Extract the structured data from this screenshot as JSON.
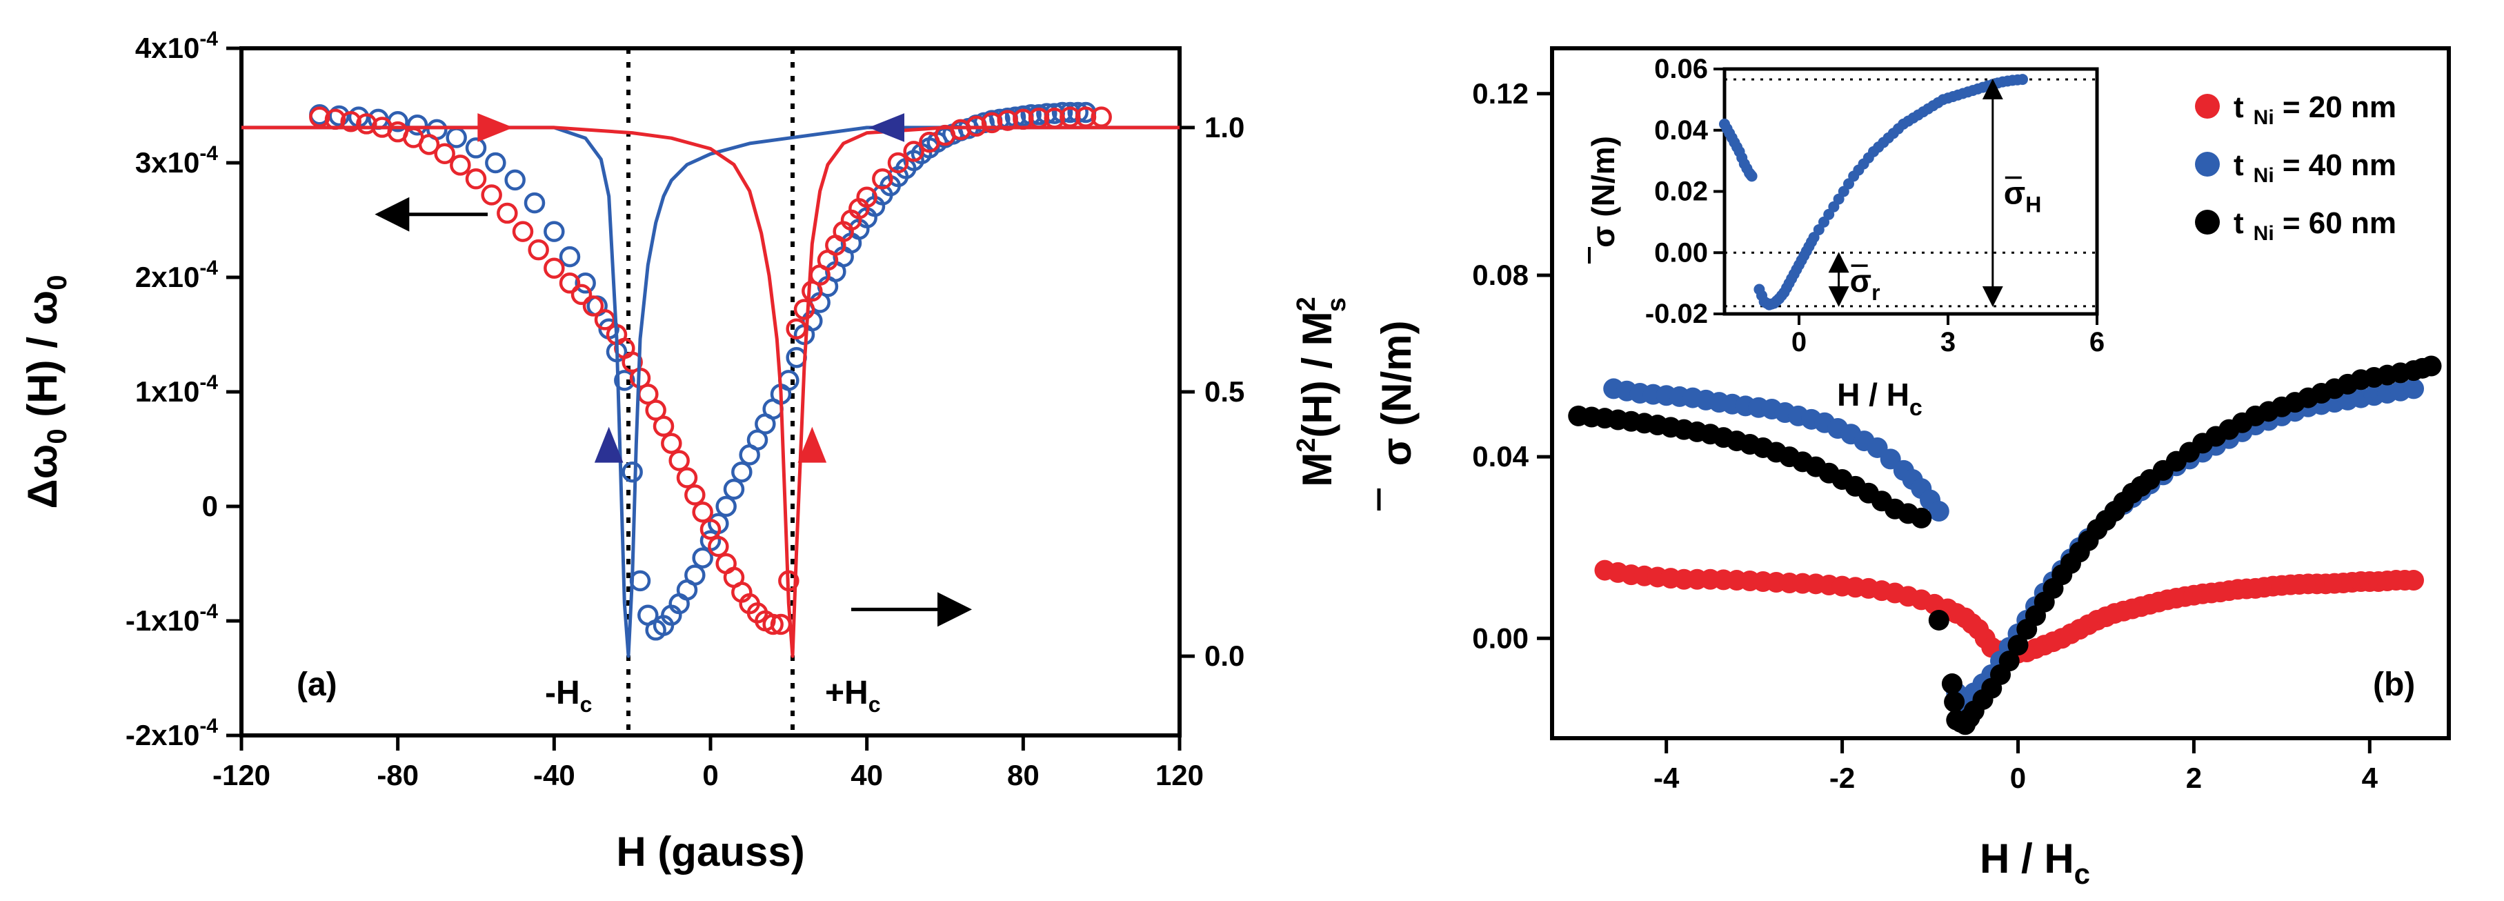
{
  "figure_colors": {
    "red": "#e8262d",
    "blue": "#2f5fb0",
    "black": "#000000",
    "navy": "#2b3294"
  },
  "chart_data": [
    {
      "type": "line",
      "panel_label": "(a)",
      "xlabel": "H (gauss)",
      "ylabel_left": "Δω₀ (H) / ω₀",
      "ylabel_left_parts": {
        "delta": "Δ",
        "omega": "ω",
        "sub0": "0",
        "mid": " (H) / ",
        "omega2": "ω",
        "sub0b": "0"
      },
      "ylabel_right": "M²(H) / M²s",
      "ylabel_right_parts": {
        "m": "M",
        "sup2": "2",
        "mid": "(H) / M",
        "sup2b": "2",
        "subs": "s"
      },
      "xlim": [
        -120,
        120
      ],
      "xticks": [
        -120,
        -80,
        -40,
        0,
        40,
        80,
        120
      ],
      "xtick_labels": [
        "-120",
        "-80",
        "-40",
        "0",
        "40",
        "80",
        "120"
      ],
      "ylim_left": [
        -0.0002,
        0.0004
      ],
      "yticks_left": [
        {
          "value": 0.0004,
          "mant": "4x10",
          "exp": "-4"
        },
        {
          "value": 0.0003,
          "mant": "3x10",
          "exp": "-4"
        },
        {
          "value": 0.0002,
          "mant": "2x10",
          "exp": "-4"
        },
        {
          "value": 0.0001,
          "mant": "1x10",
          "exp": "-4"
        },
        {
          "value": 0,
          "mant": "0",
          "exp": ""
        },
        {
          "value": -0.0001,
          "mant": "-1x10",
          "exp": "-4"
        },
        {
          "value": -0.0002,
          "mant": "-2x10",
          "exp": "-4"
        }
      ],
      "ylim_right": [
        -0.15,
        1.15
      ],
      "yticks_right": [
        0.0,
        0.5,
        1.0
      ],
      "ytick_right_labels": [
        "0.0",
        "0.5",
        "1.0"
      ],
      "vlines": [
        {
          "x": -21,
          "label": "-H",
          "sub": "c"
        },
        {
          "x": 21,
          "label": "+H",
          "sub": "c"
        }
      ],
      "arrows": [
        {
          "direction": "left",
          "x0": -57,
          "x1": -85,
          "y": 0.000255
        },
        {
          "direction": "right",
          "x0": 36,
          "x1": 66,
          "y": -9e-05
        }
      ],
      "series": [
        {
          "name": "blue circles (Δω₀/ω₀)",
          "color": "blue",
          "marker": "open-circle",
          "axis": "left",
          "x": [
            -100,
            -95,
            -90,
            -85,
            -80,
            -75,
            -70,
            -65,
            -60,
            -55,
            -50,
            -45,
            -40,
            -36,
            -32,
            -29,
            -26,
            -24,
            -22,
            -20,
            -18,
            -16,
            -14,
            -12,
            -10,
            -8,
            -6,
            -4,
            -2,
            0,
            2,
            4,
            6,
            8,
            10,
            12,
            14,
            16,
            18,
            20,
            22,
            24,
            26,
            28,
            30,
            32,
            34,
            36,
            38,
            40,
            42,
            44,
            46,
            48,
            50,
            52,
            54,
            56,
            58,
            60,
            62,
            64,
            66,
            68,
            70,
            72,
            74,
            76,
            78,
            80,
            82,
            84,
            86,
            88,
            90,
            92,
            94,
            96
          ],
          "y": [
            0.000342,
            0.000341,
            0.00034,
            0.000338,
            0.000336,
            0.000333,
            0.000329,
            0.000322,
            0.000313,
            0.0003,
            0.000285,
            0.000265,
            0.00024,
            0.000218,
            0.000195,
            0.000175,
            0.000155,
            0.000135,
            0.00011,
            3e-05,
            -6.5e-05,
            -9.5e-05,
            -0.000108,
            -0.000104,
            -9.5e-05,
            -8.5e-05,
            -7.3e-05,
            -6e-05,
            -4.5e-05,
            -3e-05,
            -1.5e-05,
            0.0,
            1.5e-05,
            3e-05,
            4.5e-05,
            5.8e-05,
            7.2e-05,
            8.5e-05,
            9.8e-05,
            0.00011,
            0.00013,
            0.00015,
            0.000162,
            0.000178,
            0.000192,
            0.000205,
            0.000218,
            0.00023,
            0.000242,
            0.000252,
            0.000262,
            0.000272,
            0.00028,
            0.000288,
            0.000295,
            0.000302,
            0.000308,
            0.000313,
            0.000318,
            0.000322,
            0.000325,
            0.000328,
            0.00033,
            0.000333,
            0.000335,
            0.000337,
            0.000338,
            0.000339,
            0.00034,
            0.000341,
            0.000342,
            0.000342,
            0.000343,
            0.000343,
            0.000344,
            0.000344,
            0.000344,
            0.000344
          ]
        },
        {
          "name": "red circles (Δω₀/ω₀)",
          "color": "red",
          "marker": "open-circle",
          "axis": "left",
          "x": [
            -100,
            -96,
            -92,
            -88,
            -84,
            -80,
            -76,
            -72,
            -68,
            -64,
            -60,
            -56,
            -52,
            -48,
            -44,
            -40,
            -36,
            -33,
            -30,
            -27,
            -24,
            -22,
            -20,
            -18,
            -16,
            -14,
            -12,
            -10,
            -8,
            -6,
            -4,
            -2,
            0,
            2,
            4,
            6,
            8,
            10,
            12,
            14,
            16,
            18,
            20,
            22,
            24,
            26,
            28,
            30,
            32,
            34,
            36,
            38,
            40,
            44,
            48,
            52,
            56,
            60,
            64,
            68,
            72,
            76,
            80,
            84,
            88,
            92,
            96,
            100
          ],
          "y": [
            0.00034,
            0.000338,
            0.000336,
            0.000334,
            0.000331,
            0.000327,
            0.000322,
            0.000316,
            0.000308,
            0.000298,
            0.000286,
            0.000272,
            0.000256,
            0.00024,
            0.000224,
            0.000208,
            0.000195,
            0.000185,
            0.000175,
            0.000163,
            0.00015,
            0.000138,
            0.000126,
            0.000112,
            9.8e-05,
            8.4e-05,
            7e-05,
            5.5e-05,
            4e-05,
            2.5e-05,
            1e-05,
            -5e-06,
            -2e-05,
            -3.5e-05,
            -5e-05,
            -6.2e-05,
            -7.5e-05,
            -8.5e-05,
            -9.3e-05,
            -0.0001,
            -0.000103,
            -0.000103,
            -6.5e-05,
            0.000155,
            0.000172,
            0.000188,
            0.000202,
            0.000215,
            0.000228,
            0.00024,
            0.00025,
            0.00026,
            0.00027,
            0.000286,
            0.0003,
            0.00031,
            0.000318,
            0.000324,
            0.000329,
            0.000332,
            0.000335,
            0.000337,
            0.000338,
            0.000339,
            0.000339,
            0.00034,
            0.00034,
            0.00034
          ]
        },
        {
          "name": "blue line (M²/Ms²)",
          "color": "blue",
          "marker": "line",
          "axis": "right",
          "x": [
            -120,
            -80,
            -40,
            -32,
            -28,
            -26,
            -24,
            -23,
            -22,
            -21,
            -20,
            -19,
            -18,
            -16,
            -14,
            -12,
            -10,
            -6,
            0,
            10,
            20,
            40,
            45,
            60,
            80,
            120
          ],
          "y": [
            1.0,
            1.0,
            1.0,
            0.98,
            0.94,
            0.87,
            0.6,
            0.35,
            0.1,
            0.0,
            0.15,
            0.4,
            0.6,
            0.74,
            0.82,
            0.87,
            0.9,
            0.93,
            0.95,
            0.97,
            0.98,
            1.0,
            1.0,
            1.0,
            1.0,
            1.0
          ]
        },
        {
          "name": "red line (M²/Ms²)",
          "color": "red",
          "marker": "line",
          "axis": "right",
          "x": [
            -120,
            -80,
            -45,
            -40,
            -20,
            -10,
            0,
            6,
            10,
            13,
            15,
            17,
            18,
            19,
            20,
            21,
            22,
            24,
            26,
            28,
            30,
            34,
            40,
            60,
            120
          ],
          "y": [
            1.0,
            1.0,
            1.0,
            1.0,
            0.99,
            0.98,
            0.96,
            0.93,
            0.88,
            0.8,
            0.72,
            0.6,
            0.5,
            0.3,
            0.1,
            0.0,
            0.2,
            0.55,
            0.78,
            0.88,
            0.93,
            0.97,
            0.99,
            1.0,
            1.0
          ]
        }
      ],
      "markers_triangles": [
        {
          "color": "red",
          "dir": "right",
          "x": -55,
          "y": 1.0
        },
        {
          "color": "navy",
          "dir": "left",
          "x": 45,
          "y": 1.0
        },
        {
          "color": "navy",
          "dir": "up",
          "x": -26,
          "y": 0.4
        },
        {
          "color": "red",
          "dir": "up",
          "x": 26,
          "y": 0.4
        }
      ]
    },
    {
      "type": "scatter",
      "panel_label": "(b)",
      "xlabel": "H / H",
      "xlabel_sub": "c",
      "ylabel": "σ (N/m)",
      "xlim": [
        -5.3,
        4.9
      ],
      "xticks": [
        -4,
        -2,
        0,
        2,
        4
      ],
      "xtick_labels": [
        "-4",
        "-2",
        "0",
        "2",
        "4"
      ],
      "ylim": [
        -0.022,
        0.13
      ],
      "yticks": [
        0.0,
        0.04,
        0.08,
        0.12
      ],
      "ytick_labels": [
        "0.00",
        "0.04",
        "0.08",
        "0.12"
      ],
      "legend": [
        {
          "label": "t",
          "sub": "Ni",
          "value": " = 20 nm",
          "color": "red"
        },
        {
          "label": "t",
          "sub": "Ni",
          "value": " = 40 nm",
          "color": "blue"
        },
        {
          "label": "t",
          "sub": "Ni",
          "value": " = 60 nm",
          "color": "black"
        }
      ],
      "series": [
        {
          "name": "tNi = 20 nm",
          "color": "red",
          "x": [
            -4.7,
            -4.4,
            -4.1,
            -3.8,
            -3.5,
            -3.2,
            -2.9,
            -2.6,
            -2.3,
            -2.0,
            -1.7,
            -1.4,
            -1.1,
            -0.8,
            -0.6,
            -0.45,
            -0.3,
            -0.1,
            0.1,
            0.3,
            0.5,
            0.7,
            0.9,
            1.1,
            1.3,
            1.5,
            1.7,
            1.9,
            2.1,
            2.3,
            2.5,
            2.7,
            2.9,
            3.1,
            3.3,
            3.5,
            3.7,
            3.9,
            4.1,
            4.3,
            4.5
          ],
          "y": [
            0.015,
            0.014,
            0.0135,
            0.013,
            0.013,
            0.0128,
            0.0125,
            0.0122,
            0.012,
            0.0115,
            0.011,
            0.01,
            0.0085,
            0.0065,
            0.0045,
            0.002,
            -0.002,
            -0.0035,
            -0.003,
            -0.0015,
            0.0,
            0.002,
            0.004,
            0.0055,
            0.0065,
            0.0075,
            0.0085,
            0.0092,
            0.0098,
            0.0102,
            0.0108,
            0.011,
            0.0115,
            0.0118,
            0.012,
            0.012,
            0.0122,
            0.0125,
            0.0125,
            0.0128,
            0.0128
          ]
        },
        {
          "name": "tNi = 40 nm",
          "color": "blue",
          "x": [
            -4.6,
            -4.3,
            -4.0,
            -3.7,
            -3.4,
            -3.1,
            -2.8,
            -2.5,
            -2.2,
            -1.9,
            -1.6,
            -1.3,
            -1.1,
            -0.9,
            -0.7,
            -0.6,
            -0.5,
            -0.3,
            -0.1,
            0.1,
            0.3,
            0.5,
            0.7,
            0.9,
            1.1,
            1.3,
            1.5,
            1.8,
            2.1,
            2.4,
            2.7,
            3.0,
            3.3,
            3.6,
            3.9,
            4.2,
            4.5
          ],
          "y": [
            0.055,
            0.054,
            0.0535,
            0.053,
            0.052,
            0.0512,
            0.0505,
            0.049,
            0.0475,
            0.045,
            0.042,
            0.037,
            0.033,
            0.028,
            -0.012,
            -0.015,
            -0.012,
            -0.008,
            -0.002,
            0.004,
            0.01,
            0.015,
            0.02,
            0.024,
            0.028,
            0.031,
            0.034,
            0.038,
            0.041,
            0.044,
            0.047,
            0.049,
            0.051,
            0.052,
            0.053,
            0.054,
            0.055
          ]
        },
        {
          "name": "tNi = 60 nm",
          "color": "black",
          "x": [
            -5.0,
            -4.7,
            -4.4,
            -4.1,
            -3.8,
            -3.5,
            -3.2,
            -2.9,
            -2.6,
            -2.3,
            -2.0,
            -1.7,
            -1.4,
            -1.1,
            -0.9,
            -0.75,
            -0.7,
            -0.6,
            -0.5,
            -0.3,
            -0.1,
            0.1,
            0.3,
            0.5,
            0.7,
            0.9,
            1.1,
            1.3,
            1.5,
            1.8,
            2.1,
            2.4,
            2.7,
            3.0,
            3.3,
            3.6,
            3.9,
            4.2,
            4.5,
            4.7
          ],
          "y": [
            0.049,
            0.0485,
            0.0478,
            0.047,
            0.046,
            0.045,
            0.0435,
            0.042,
            0.04,
            0.0378,
            0.035,
            0.032,
            0.0285,
            0.0265,
            0.004,
            -0.01,
            -0.018,
            -0.019,
            -0.016,
            -0.011,
            -0.005,
            0.002,
            0.008,
            0.014,
            0.019,
            0.024,
            0.028,
            0.032,
            0.035,
            0.039,
            0.043,
            0.046,
            0.049,
            0.051,
            0.053,
            0.055,
            0.057,
            0.058,
            0.059,
            0.06
          ]
        }
      ],
      "inset": {
        "type": "scatter",
        "xlabel": "H / H",
        "xlabel_sub": "c",
        "ylabel": "σ (N/m)",
        "xlim": [
          -1.5,
          6
        ],
        "xticks": [
          0,
          3,
          6
        ],
        "xtick_labels": [
          "0",
          "3",
          "6"
        ],
        "ylim": [
          -0.02,
          0.06
        ],
        "yticks": [
          -0.02,
          0.0,
          0.02,
          0.04,
          0.06
        ],
        "ytick_labels": [
          "-0.02",
          "0.00",
          "0.02",
          "0.04",
          "0.06"
        ],
        "hlines": [
          0.0566,
          0.0,
          -0.0175
        ],
        "annotations": [
          {
            "label": "σ",
            "sub": "H",
            "x": 3.9,
            "y0": -0.0175,
            "y1": 0.0566
          },
          {
            "label": "σ",
            "sub": "r",
            "x": 0.8,
            "y0": -0.0175,
            "y1": 0.0
          }
        ],
        "series": [
          {
            "name": "tNi = 40 nm",
            "color": "blue",
            "x": [
              -1.5,
              -1.4,
              -1.3,
              -1.2,
              -1.1,
              -1.0,
              -0.95,
              -0.8,
              -0.7,
              -0.6,
              -0.5,
              -0.4,
              -0.3,
              -0.2,
              -0.1,
              0.0,
              0.1,
              0.2,
              0.3,
              0.5,
              0.7,
              0.9,
              1.1,
              1.3,
              1.5,
              1.7,
              1.9,
              2.1,
              2.3,
              2.5,
              2.7,
              2.9,
              3.1,
              3.3,
              3.5,
              3.7,
              3.9,
              4.1,
              4.3,
              4.5
            ],
            "y": [
              0.042,
              0.039,
              0.036,
              0.033,
              0.029,
              0.026,
              0.025,
              -0.012,
              -0.016,
              -0.017,
              -0.0165,
              -0.015,
              -0.013,
              -0.01,
              -0.007,
              -0.004,
              -0.001,
              0.002,
              0.005,
              0.01,
              0.015,
              0.02,
              0.025,
              0.029,
              0.033,
              0.036,
              0.039,
              0.042,
              0.044,
              0.046,
              0.048,
              0.05,
              0.051,
              0.052,
              0.053,
              0.054,
              0.055,
              0.0558,
              0.0563,
              0.0566
            ]
          }
        ]
      }
    }
  ]
}
